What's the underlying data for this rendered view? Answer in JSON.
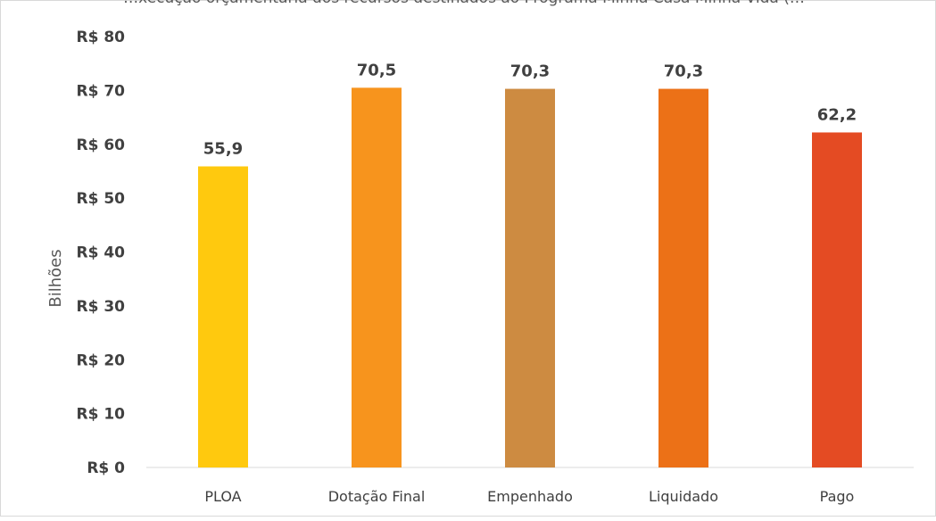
{
  "chart_data": {
    "type": "bar",
    "title": "…xecução orçamentária dos recursos destinados ao Programa Minha Casa Minha Vida (…",
    "ylabel": "Bilhões",
    "xlabel": "",
    "ylim": [
      0,
      80
    ],
    "yticks": [
      "R$ 0",
      "R$ 10",
      "R$ 20",
      "R$ 30",
      "R$ 40",
      "R$ 50",
      "R$ 60",
      "R$ 70",
      "R$ 80"
    ],
    "categories": [
      "PLOA",
      "Dotação Final",
      "Empenhado",
      "Liquidado",
      "Pago"
    ],
    "values": [
      55.9,
      70.5,
      70.3,
      70.3,
      62.2
    ],
    "data_labels": [
      "55,9",
      "70,5",
      "70,3",
      "70,3",
      "62,2"
    ],
    "colors": [
      "#FFC90E",
      "#F7941D",
      "#CD8B41",
      "#EC7117",
      "#E44B23"
    ],
    "grid": false,
    "legend": "none"
  }
}
